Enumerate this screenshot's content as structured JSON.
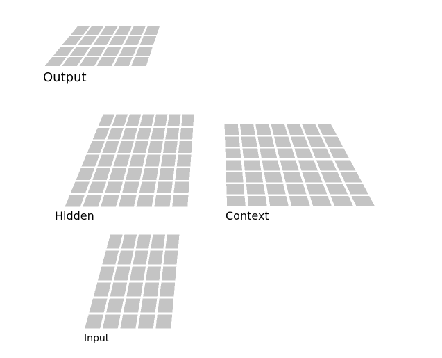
{
  "diagram": {
    "title": "",
    "cell_color": "#c4c4c4",
    "background": "#ffffff",
    "layers": [
      {
        "id": "output",
        "label": "Output",
        "rows": 4,
        "cols": 6
      },
      {
        "id": "hidden",
        "label": "Hidden",
        "rows": 7,
        "cols": 7
      },
      {
        "id": "context",
        "label": "Context",
        "rows": 7,
        "cols": 7
      },
      {
        "id": "input",
        "label": "Input",
        "rows": 6,
        "cols": 5
      }
    ]
  }
}
